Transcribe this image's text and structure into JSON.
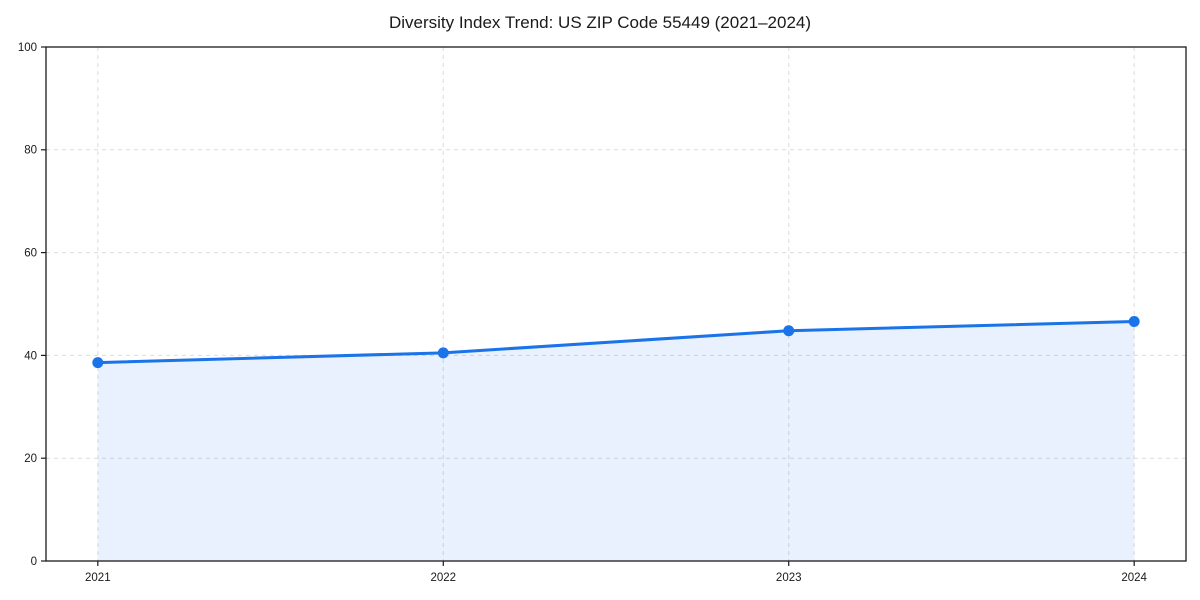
{
  "chart_data": {
    "type": "area",
    "title": "Diversity Index Trend: US ZIP Code 55449 (2021–2024)",
    "x": [
      "2021",
      "2022",
      "2023",
      "2024"
    ],
    "series": [
      {
        "name": "Diversity Index",
        "values": [
          38.6,
          40.5,
          44.8,
          46.6
        ]
      }
    ],
    "xlabel": "",
    "ylabel": "",
    "ylim": [
      0,
      100
    ],
    "yticks": [
      0,
      20,
      40,
      60,
      80,
      100
    ],
    "grid": "dashed both axes",
    "legend": "none",
    "fill_extent": "fill spans data range 2021-2024 down to y=0",
    "colors": {
      "line": "#1a73e8",
      "marker": "#1a73e8",
      "fill": "#1a73e8",
      "fill_opacity": 0.1,
      "grid": "#dcdcdc",
      "axis": "#1a1a1a",
      "tick_text": "#1a1a1a",
      "background": "#ffffff"
    }
  }
}
